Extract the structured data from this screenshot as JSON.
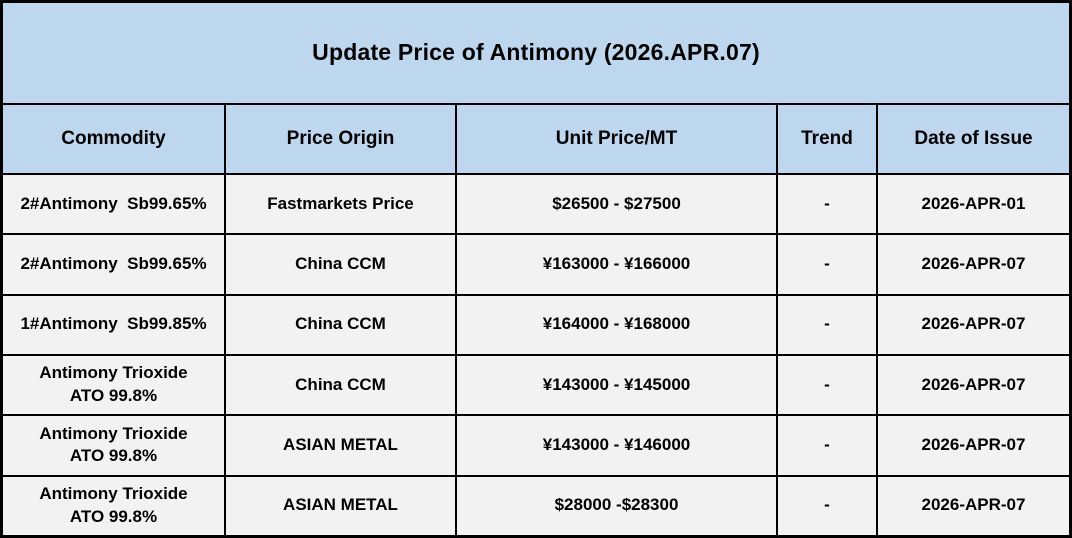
{
  "title": "Update Price of Antimony (2026.APR.07)",
  "table": {
    "headers": [
      "Commodity",
      "Price Origin",
      "Unit Price/MT",
      "Trend",
      "Date of Issue"
    ],
    "rows": [
      {
        "commodity": "2#Antimony  Sb99.65%",
        "origin": "Fastmarkets Price",
        "price": "$26500 - $27500",
        "trend": "-",
        "date": "2026-APR-01"
      },
      {
        "commodity": "2#Antimony  Sb99.65%",
        "origin": "China CCM",
        "price": "¥163000 - ¥166000",
        "trend": "-",
        "date": "2026-APR-07"
      },
      {
        "commodity": "1#Antimony  Sb99.85%",
        "origin": "China CCM",
        "price": "¥164000 - ¥168000",
        "trend": "-",
        "date": "2026-APR-07"
      },
      {
        "commodity": "Antimony Trioxide\nATO 99.8%",
        "origin": "China CCM",
        "price": "¥143000 - ¥145000",
        "trend": "-",
        "date": "2026-APR-07"
      },
      {
        "commodity": "Antimony Trioxide\nATO 99.8%",
        "origin": "ASIAN METAL",
        "price": "¥143000 - ¥146000",
        "trend": "-",
        "date": "2026-APR-07"
      },
      {
        "commodity": "Antimony Trioxide\nATO 99.8%",
        "origin": "ASIAN METAL",
        "price": "$28000 -$28300",
        "trend": "-",
        "date": "2026-APR-07"
      }
    ]
  },
  "colors": {
    "title_bg": "#BDD7EE",
    "header_bg": "#BDD7EE",
    "row_bg": "#F2F2F2",
    "border": "#000000",
    "text": "#000000"
  },
  "chart_data": {
    "type": "table",
    "title": "Update Price of Antimony (2026.APR.07)",
    "columns": [
      "Commodity",
      "Price Origin",
      "Unit Price/MT",
      "Trend",
      "Date of Issue"
    ],
    "rows": [
      [
        "2#Antimony Sb99.65%",
        "Fastmarkets Price",
        "$26500 - $27500",
        "-",
        "2026-APR-01"
      ],
      [
        "2#Antimony Sb99.65%",
        "China CCM",
        "¥163000 - ¥166000",
        "-",
        "2026-APR-07"
      ],
      [
        "1#Antimony Sb99.85%",
        "China CCM",
        "¥164000 - ¥168000",
        "-",
        "2026-APR-07"
      ],
      [
        "Antimony Trioxide ATO 99.8%",
        "China CCM",
        "¥143000 - ¥145000",
        "-",
        "2026-APR-07"
      ],
      [
        "Antimony Trioxide ATO 99.8%",
        "ASIAN METAL",
        "¥143000 - ¥146000",
        "-",
        "2026-APR-07"
      ],
      [
        "Antimony Trioxide ATO 99.8%",
        "ASIAN METAL",
        "$28000 - $28300",
        "-",
        "2026-APR-07"
      ]
    ]
  }
}
